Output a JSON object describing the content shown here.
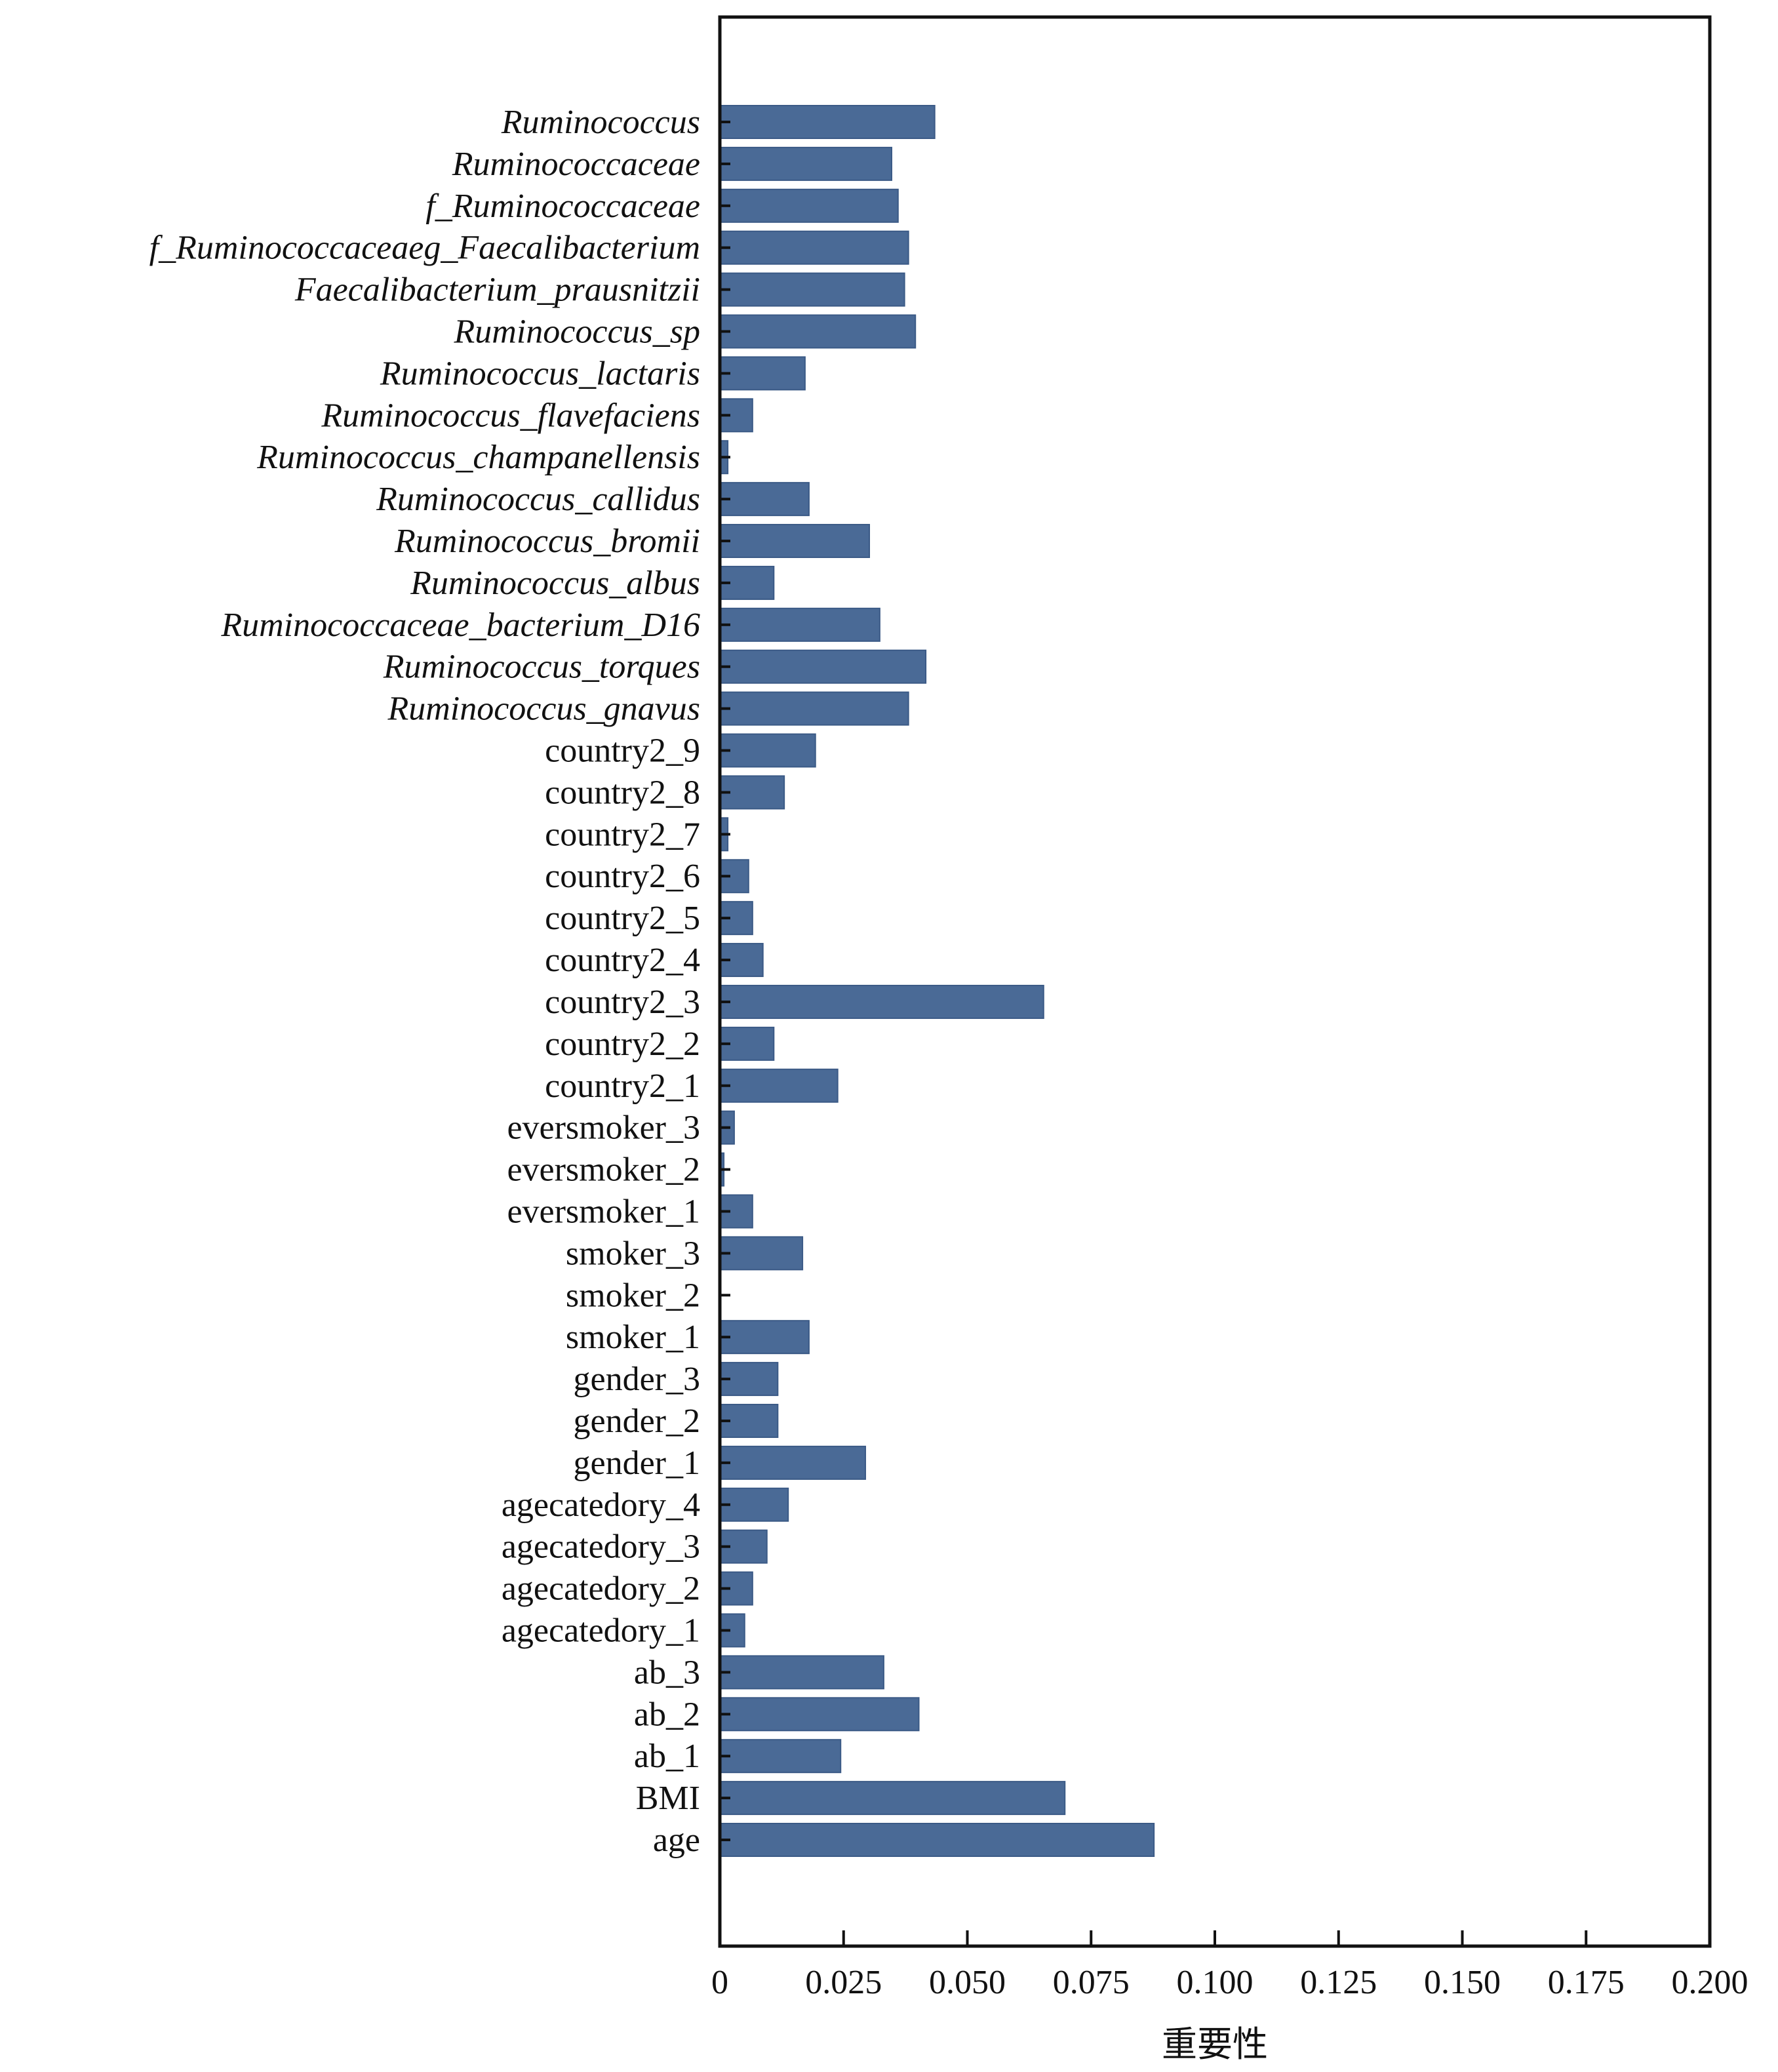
{
  "chart_data": {
    "type": "bar",
    "orientation": "horizontal",
    "title": "",
    "xlabel": "重要性",
    "ylabel": "",
    "xlim": [
      0,
      0.2
    ],
    "xticks": [
      "0",
      "0.025",
      "0.050",
      "0.075",
      "0.100",
      "0.125",
      "0.150",
      "0.175",
      "0.200"
    ],
    "grid": false,
    "bar_color": "#4a6a96",
    "categories": [
      "Ruminococcus",
      "Ruminococcaceae",
      "f_Ruminococcaceae",
      "f_Ruminococcaceaeg_Faecalibacterium",
      "Faecalibacterium_prausnitzii",
      "Ruminococcus_sp",
      "Ruminococcus_lactaris",
      "Ruminococcus_flavefaciens",
      "Ruminococcus_champanellensis",
      "Ruminococcus_callidus",
      "Ruminococcus_bromii",
      "Ruminococcus_albus",
      "Ruminococcaceae_bacterium_D16",
      "Ruminococcus_torques",
      "Ruminococcus_gnavus",
      "country2_9",
      "country2_8",
      "country2_7",
      "country2_6",
      "country2_5",
      "country2_4",
      "country2_3",
      "country2_2",
      "country2_1",
      "eversmoker_3",
      "eversmoker_2",
      "eversmoker_1",
      "smoker_3",
      "smoker_2",
      "smoker_1",
      "gender_3",
      "gender_2",
      "gender_1",
      "agecatedory_4",
      "agecatedory_3",
      "agecatedory_2",
      "agecatedory_1",
      "ab_3",
      "ab_2",
      "ab_1",
      "BMI",
      "age"
    ],
    "italic": [
      true,
      true,
      true,
      true,
      true,
      true,
      true,
      true,
      true,
      true,
      true,
      true,
      true,
      true,
      true,
      false,
      false,
      false,
      false,
      false,
      false,
      false,
      false,
      false,
      false,
      false,
      false,
      false,
      false,
      false,
      false,
      false,
      false,
      false,
      false,
      false,
      false,
      false,
      false,
      false,
      false,
      false
    ],
    "values": [
      0.0434,
      0.0347,
      0.036,
      0.0381,
      0.0373,
      0.0395,
      0.0172,
      0.0066,
      0.0016,
      0.018,
      0.0302,
      0.0109,
      0.0323,
      0.0416,
      0.0381,
      0.0193,
      0.013,
      0.0016,
      0.0058,
      0.0066,
      0.0087,
      0.0654,
      0.0109,
      0.0238,
      0.0029,
      0.0008,
      0.0066,
      0.0167,
      0.0,
      0.018,
      0.0117,
      0.0117,
      0.0294,
      0.0138,
      0.0095,
      0.0066,
      0.005,
      0.0331,
      0.0402,
      0.0244,
      0.0697,
      0.0877
    ]
  }
}
